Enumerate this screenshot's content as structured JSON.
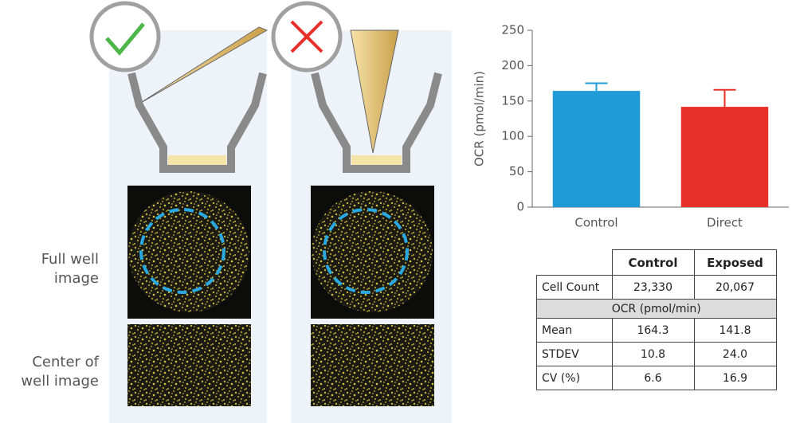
{
  "chart_data": {
    "type": "bar",
    "y_label": "OCR (pmol/min)",
    "categories": [
      "Control",
      "Direct"
    ],
    "values": [
      164.3,
      141.8
    ],
    "errors": [
      10.8,
      24.0
    ],
    "colors": [
      "#1e9bd7",
      "#e8302a"
    ],
    "ylim": [
      0,
      250
    ],
    "yticks": [
      0,
      50,
      100,
      150,
      200,
      250
    ]
  },
  "row_labels": [
    "Full well image",
    "Center of well image"
  ],
  "table": {
    "columns": [
      "Control",
      "Exposed"
    ],
    "rows": [
      {
        "label": "Cell Count",
        "values": [
          "23,330",
          "20,067"
        ]
      }
    ],
    "section": "OCR (pmol/min)",
    "section_rows": [
      {
        "label": "Mean",
        "values": [
          "164.3",
          "141.8"
        ]
      },
      {
        "label": "STDEV",
        "values": [
          "10.8",
          "24.0"
        ]
      },
      {
        "label": "CV (%)",
        "values": [
          "6.6",
          "16.9"
        ]
      }
    ]
  }
}
